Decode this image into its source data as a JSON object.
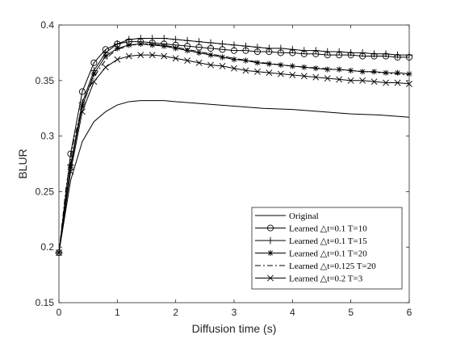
{
  "chart_data": {
    "type": "line",
    "title": "",
    "xlabel": "Diffusion time (s)",
    "ylabel": "BLUR",
    "xlim": [
      0,
      6
    ],
    "ylim": [
      0.15,
      0.4
    ],
    "xticks": [
      "0",
      "1",
      "2",
      "3",
      "4",
      "5",
      "6"
    ],
    "yticks": [
      "0.15",
      "0.2",
      "0.25",
      "0.3",
      "0.35",
      "0.4"
    ],
    "grid": false,
    "legend_position": "bottom-right",
    "series": [
      {
        "name": "Original",
        "marker": "none",
        "line_style": "solid",
        "x": [
          0,
          0.2,
          0.4,
          0.6,
          0.8,
          1.0,
          1.2,
          1.4,
          1.6,
          1.8,
          2.0,
          2.5,
          3.0,
          3.5,
          4.0,
          4.5,
          5.0,
          5.5,
          6.0
        ],
        "y": [
          0.195,
          0.26,
          0.295,
          0.313,
          0.322,
          0.328,
          0.331,
          0.332,
          0.332,
          0.332,
          0.331,
          0.329,
          0.327,
          0.325,
          0.324,
          0.322,
          0.32,
          0.319,
          0.317
        ]
      },
      {
        "name": "Learned △t=0.1 T=10",
        "marker": "circle",
        "line_style": "solid",
        "x": [
          0,
          0.2,
          0.4,
          0.6,
          0.8,
          1.0,
          1.2,
          1.4,
          1.6,
          1.8,
          2.0,
          2.2,
          2.4,
          2.6,
          2.8,
          3.0,
          3.2,
          3.4,
          3.6,
          3.8,
          4.0,
          4.2,
          4.4,
          4.6,
          4.8,
          5.0,
          5.2,
          5.4,
          5.6,
          5.8,
          6.0
        ],
        "y": [
          0.195,
          0.284,
          0.34,
          0.366,
          0.378,
          0.383,
          0.385,
          0.385,
          0.384,
          0.383,
          0.382,
          0.381,
          0.38,
          0.379,
          0.378,
          0.377,
          0.377,
          0.376,
          0.376,
          0.375,
          0.375,
          0.374,
          0.374,
          0.373,
          0.373,
          0.373,
          0.372,
          0.372,
          0.372,
          0.371,
          0.371
        ]
      },
      {
        "name": "Learned △t=0.1 T=15",
        "marker": "plus",
        "line_style": "solid",
        "x": [
          0,
          0.2,
          0.4,
          0.6,
          0.8,
          1.0,
          1.2,
          1.4,
          1.6,
          1.8,
          2.0,
          2.2,
          2.4,
          2.6,
          2.8,
          3.0,
          3.2,
          3.4,
          3.6,
          3.8,
          4.0,
          4.2,
          4.4,
          4.6,
          4.8,
          5.0,
          5.2,
          5.4,
          5.6,
          5.8,
          6.0
        ],
        "y": [
          0.195,
          0.274,
          0.33,
          0.359,
          0.375,
          0.383,
          0.387,
          0.388,
          0.388,
          0.388,
          0.387,
          0.386,
          0.385,
          0.384,
          0.383,
          0.382,
          0.381,
          0.38,
          0.379,
          0.379,
          0.378,
          0.377,
          0.377,
          0.376,
          0.376,
          0.375,
          0.375,
          0.374,
          0.374,
          0.373,
          0.373
        ]
      },
      {
        "name": "Learned △t=0.1 T=20",
        "marker": "star",
        "line_style": "solid",
        "x": [
          0,
          0.2,
          0.4,
          0.6,
          0.8,
          1.0,
          1.2,
          1.4,
          1.6,
          1.8,
          2.0,
          2.2,
          2.4,
          2.6,
          2.8,
          3.0,
          3.2,
          3.4,
          3.6,
          3.8,
          4.0,
          4.2,
          4.4,
          4.6,
          4.8,
          5.0,
          5.2,
          5.4,
          5.6,
          5.8,
          6.0
        ],
        "y": [
          0.195,
          0.272,
          0.327,
          0.356,
          0.372,
          0.379,
          0.382,
          0.383,
          0.382,
          0.381,
          0.379,
          0.377,
          0.375,
          0.373,
          0.371,
          0.369,
          0.368,
          0.366,
          0.365,
          0.364,
          0.363,
          0.362,
          0.361,
          0.36,
          0.36,
          0.359,
          0.358,
          0.358,
          0.357,
          0.357,
          0.356
        ]
      },
      {
        "name": "Learned △t=0.125 T=20",
        "marker": "none",
        "line_style": "dashdot",
        "x": [
          0,
          0.125,
          0.25,
          0.375,
          0.5,
          0.625,
          0.75,
          0.875,
          1.0,
          1.25,
          1.5,
          1.75,
          2.0,
          2.5,
          3.0,
          3.5,
          4.0,
          4.5,
          5.0,
          5.5,
          6.0
        ],
        "y": [
          0.195,
          0.255,
          0.295,
          0.322,
          0.341,
          0.355,
          0.365,
          0.373,
          0.378,
          0.382,
          0.383,
          0.382,
          0.38,
          0.375,
          0.37,
          0.366,
          0.363,
          0.361,
          0.359,
          0.357,
          0.355
        ]
      },
      {
        "name": "Learned △t=0.2 T=3",
        "marker": "x",
        "line_style": "solid",
        "x": [
          0,
          0.2,
          0.4,
          0.6,
          0.8,
          1.0,
          1.2,
          1.4,
          1.6,
          1.8,
          2.0,
          2.2,
          2.4,
          2.6,
          2.8,
          3.0,
          3.2,
          3.4,
          3.6,
          3.8,
          4.0,
          4.2,
          4.4,
          4.6,
          4.8,
          5.0,
          5.2,
          5.4,
          5.6,
          5.8,
          6.0
        ],
        "y": [
          0.195,
          0.268,
          0.322,
          0.349,
          0.362,
          0.369,
          0.372,
          0.373,
          0.373,
          0.372,
          0.37,
          0.368,
          0.366,
          0.364,
          0.363,
          0.361,
          0.359,
          0.358,
          0.357,
          0.356,
          0.355,
          0.354,
          0.353,
          0.352,
          0.351,
          0.35,
          0.35,
          0.349,
          0.348,
          0.348,
          0.347
        ]
      }
    ]
  }
}
